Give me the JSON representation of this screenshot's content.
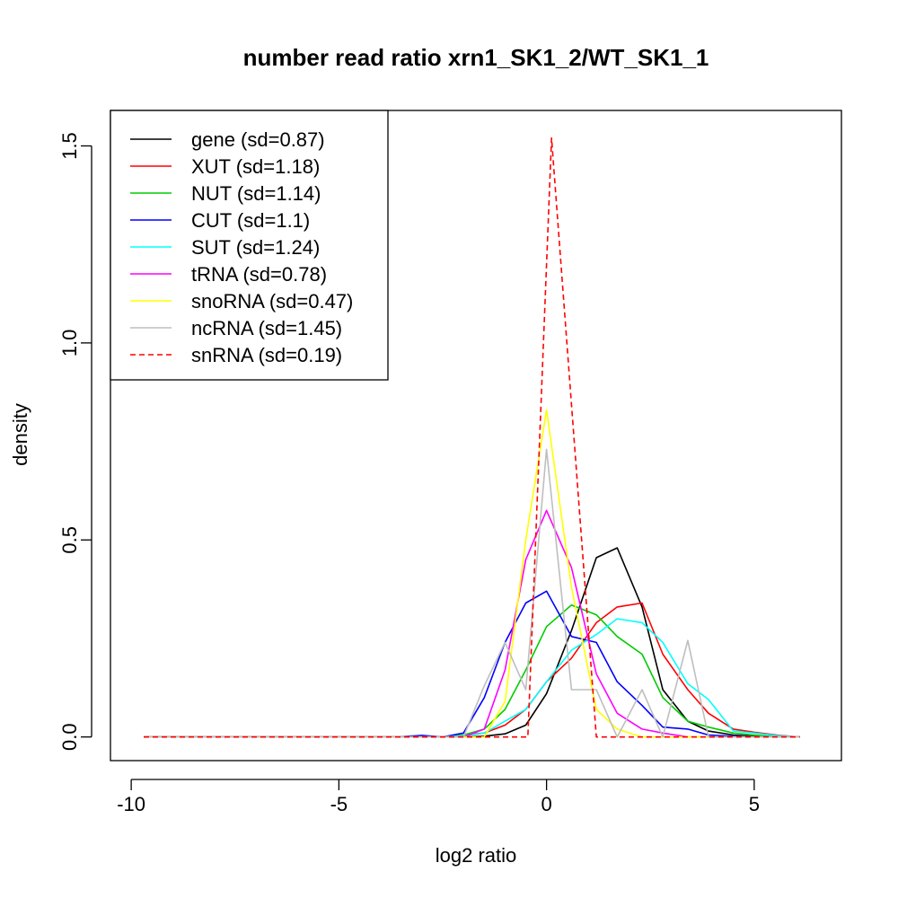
{
  "chart_data": {
    "type": "line",
    "title": "number read ratio xrn1_SK1_2/WT_SK1_1",
    "xlabel": "log2 ratio",
    "ylabel": "density",
    "xlim": [
      -10.5,
      7.1
    ],
    "ylim": [
      -0.06,
      1.59
    ],
    "x_ticks": [
      -10,
      -5,
      0,
      5
    ],
    "x_tick_labels": [
      "-10",
      "-5",
      "0",
      "5"
    ],
    "y_ticks": [
      0.0,
      0.5,
      1.0,
      1.5
    ],
    "y_tick_labels": [
      "0.0",
      "0.5",
      "1.0",
      "1.5"
    ],
    "grid": false,
    "legend_position": "top-left",
    "series": [
      {
        "name": "gene (sd=0.87)",
        "color": "#000000",
        "dash": "solid",
        "x": [
          -9.7,
          -2.5,
          -2.0,
          -1.5,
          -1.0,
          -0.5,
          0.0,
          0.6,
          1.2,
          1.7,
          2.3,
          2.8,
          3.4,
          3.9,
          4.5,
          5.0,
          5.6,
          6.1
        ],
        "y": [
          0,
          0,
          0.0,
          0.002,
          0.008,
          0.03,
          0.11,
          0.27,
          0.455,
          0.48,
          0.33,
          0.12,
          0.04,
          0.015,
          0.005,
          0.002,
          0,
          0
        ]
      },
      {
        "name": "XUT (sd=1.18)",
        "color": "#ff0000",
        "dash": "solid",
        "x": [
          -9.7,
          -2.5,
          -2.0,
          -1.5,
          -1.0,
          -0.5,
          0.0,
          0.6,
          1.2,
          1.7,
          2.3,
          2.8,
          3.4,
          3.9,
          4.5,
          5.0,
          5.6,
          6.1
        ],
        "y": [
          0,
          0,
          0.005,
          0.01,
          0.03,
          0.07,
          0.14,
          0.2,
          0.29,
          0.33,
          0.34,
          0.21,
          0.12,
          0.06,
          0.02,
          0.012,
          0.004,
          0
        ]
      },
      {
        "name": "NUT (sd=1.14)",
        "color": "#00cd00",
        "dash": "solid",
        "x": [
          -9.7,
          -2.5,
          -2.0,
          -1.5,
          -1.0,
          -0.5,
          0.0,
          0.6,
          1.2,
          1.7,
          2.3,
          2.8,
          3.4,
          3.9,
          4.5,
          5.0,
          5.6,
          6.1
        ],
        "y": [
          0,
          0,
          0.005,
          0.02,
          0.07,
          0.17,
          0.28,
          0.335,
          0.31,
          0.255,
          0.21,
          0.1,
          0.04,
          0.025,
          0.01,
          0.005,
          0,
          0
        ]
      },
      {
        "name": "CUT (sd=1.1)",
        "color": "#0000ff",
        "dash": "solid",
        "x": [
          -9.7,
          -3.6,
          -3.0,
          -2.5,
          -2.0,
          -1.5,
          -1.0,
          -0.5,
          0.0,
          0.6,
          1.2,
          1.7,
          2.3,
          2.8,
          3.4,
          3.9,
          4.5,
          5.0,
          6.1
        ],
        "y": [
          0,
          0,
          0.004,
          0,
          0.01,
          0.1,
          0.24,
          0.34,
          0.37,
          0.255,
          0.24,
          0.14,
          0.08,
          0.025,
          0.02,
          0.005,
          0.002,
          0,
          0
        ]
      },
      {
        "name": "SUT (sd=1.24)",
        "color": "#00ffff",
        "dash": "solid",
        "x": [
          -9.7,
          -2.5,
          -2.0,
          -1.5,
          -1.0,
          -0.5,
          0.0,
          0.6,
          1.2,
          1.7,
          2.3,
          2.8,
          3.4,
          3.9,
          4.5,
          5.0,
          5.6,
          6.1
        ],
        "y": [
          0,
          0,
          0.003,
          0.01,
          0.04,
          0.07,
          0.14,
          0.22,
          0.26,
          0.3,
          0.29,
          0.24,
          0.135,
          0.095,
          0.015,
          0.01,
          0.003,
          0
        ]
      },
      {
        "name": "tRNA (sd=0.78)",
        "color": "#ff00ff",
        "dash": "solid",
        "x": [
          -9.7,
          -2.0,
          -1.5,
          -1.0,
          -0.5,
          0.0,
          0.6,
          1.2,
          1.7,
          2.3,
          2.8,
          3.4,
          6.1
        ],
        "y": [
          0,
          0,
          0.02,
          0.17,
          0.45,
          0.575,
          0.43,
          0.16,
          0.06,
          0.02,
          0.01,
          0,
          0
        ]
      },
      {
        "name": "snoRNA (sd=0.47)",
        "color": "#ffff00",
        "dash": "solid",
        "x": [
          -9.7,
          -1.5,
          -1.0,
          -0.5,
          0.0,
          0.6,
          1.2,
          1.7,
          2.3,
          6.1
        ],
        "y": [
          0,
          0,
          0.09,
          0.5,
          0.83,
          0.38,
          0.07,
          0.02,
          0,
          0
        ]
      },
      {
        "name": "ncRNA (sd=1.45)",
        "color": "#bebebe",
        "dash": "solid",
        "x": [
          -9.7,
          -2.0,
          -1.5,
          -1.0,
          -0.5,
          0.0,
          0.6,
          1.2,
          1.7,
          2.3,
          2.8,
          3.4,
          3.9,
          6.1
        ],
        "y": [
          0,
          0,
          0.13,
          0.24,
          0.12,
          0.73,
          0.12,
          0.12,
          0,
          0.12,
          0,
          0.245,
          0,
          0
        ]
      },
      {
        "name": "snRNA (sd=0.19)",
        "color": "#ff0000",
        "dash": "dashed",
        "x": [
          -9.7,
          -0.45,
          0.12,
          1.2,
          6.1
        ],
        "y": [
          0,
          0,
          1.52,
          0,
          0
        ]
      }
    ]
  }
}
